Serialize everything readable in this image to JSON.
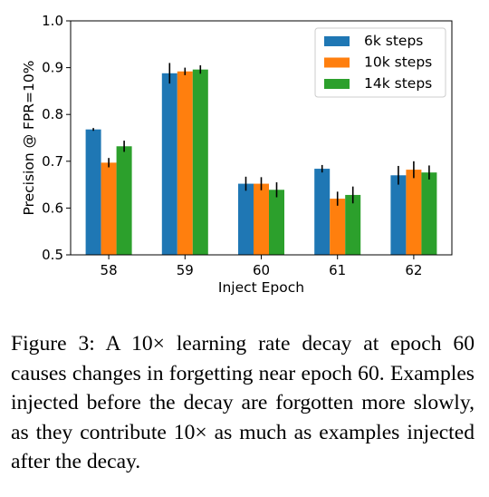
{
  "chart_data": {
    "type": "bar",
    "xlabel": "Inject Epoch",
    "ylabel": "Precision @ FPR=10%",
    "categories": [
      "58",
      "59",
      "60",
      "61",
      "62"
    ],
    "ylim": [
      0.5,
      1.0
    ],
    "yticks": [
      "0.5",
      "0.6",
      "0.7",
      "0.8",
      "0.9",
      "1.0"
    ],
    "legend_position": "top-right",
    "grid": false,
    "error_bars": true,
    "series": [
      {
        "name": "6k steps",
        "color": "#1f77b4",
        "values": [
          0.768,
          0.888,
          0.652,
          0.684,
          0.67
        ],
        "errors": [
          0.003,
          0.022,
          0.015,
          0.008,
          0.02
        ]
      },
      {
        "name": "10k steps",
        "color": "#ff7f0e",
        "values": [
          0.697,
          0.892,
          0.652,
          0.62,
          0.682
        ],
        "errors": [
          0.01,
          0.008,
          0.014,
          0.015,
          0.018
        ]
      },
      {
        "name": "14k steps",
        "color": "#2ca02c",
        "values": [
          0.732,
          0.896,
          0.639,
          0.628,
          0.676
        ],
        "errors": [
          0.012,
          0.009,
          0.016,
          0.018,
          0.015
        ]
      }
    ]
  },
  "caption": "Figure 3: A 10× learning rate decay at epoch 60 causes changes in forgetting near epoch 60. Examples injected before the decay are forgotten more slowly, as they contribute 10× as much as examples injected after the decay."
}
